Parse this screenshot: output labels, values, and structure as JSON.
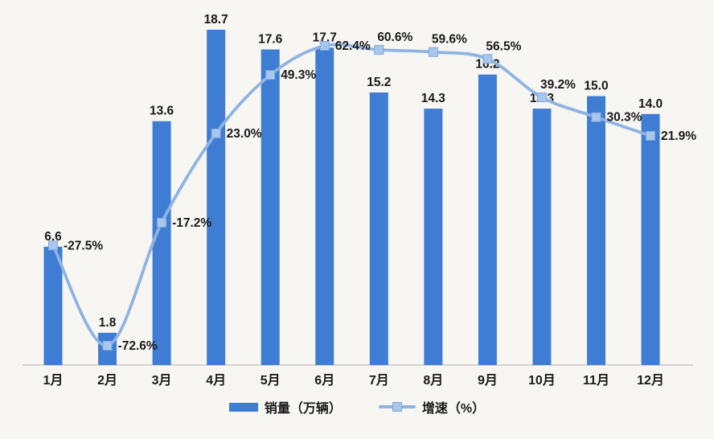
{
  "chart_data": {
    "type": "combo-bar-line",
    "title": "",
    "categories": [
      "1月",
      "2月",
      "3月",
      "4月",
      "5月",
      "6月",
      "7月",
      "8月",
      "9月",
      "10月",
      "11月",
      "12月"
    ],
    "series": [
      {
        "name": "销量（万辆）",
        "type": "bar",
        "values": [
          6.6,
          1.8,
          13.6,
          18.7,
          17.6,
          17.7,
          15.2,
          14.3,
          16.2,
          14.3,
          15.0,
          14.0
        ],
        "color": "#3E7DD3"
      },
      {
        "name": "增速（%）",
        "type": "line",
        "unit": "%",
        "values": [
          -27.5,
          -72.6,
          -17.2,
          23.0,
          49.3,
          62.4,
          60.6,
          59.6,
          56.5,
          39.2,
          30.3,
          21.9
        ],
        "color": "#8FB3E3",
        "marker_fill": "#A9C7ED",
        "marker_stroke": "#7FA9DF",
        "smooth": true
      }
    ],
    "legend_position": "bottom",
    "grid": false,
    "x_axis_line": true,
    "axes_hint": {
      "bar_axis_implied_max": 20.4,
      "pct_axis_implied_range": [
        -82,
        64
      ]
    },
    "pct_label_placement": [
      "right",
      "right",
      "right",
      "right",
      "right",
      "right",
      "above",
      "above",
      "above",
      "above",
      "right",
      "right"
    ]
  },
  "colors": {
    "background": "#F8F6F3",
    "axis_line": "#C9C9C9",
    "text": "#1A1A1A"
  }
}
